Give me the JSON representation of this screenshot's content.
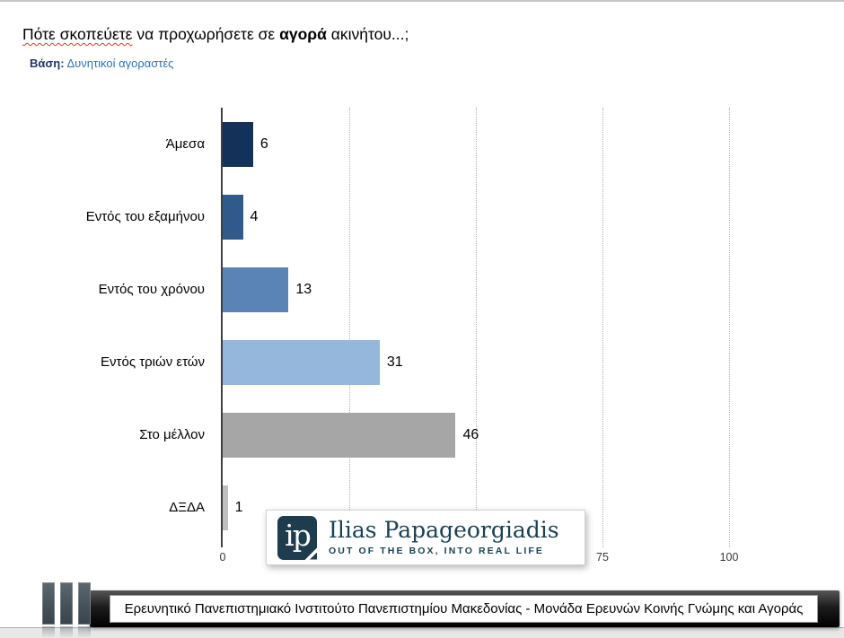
{
  "slide": {
    "title": {
      "part1": "Πότε σκοπεύετε",
      "part2": " να προχωρήσετε σε ",
      "bold": "αγορά",
      "part3": " ακινήτου...;"
    },
    "subtitle": {
      "label": "Βάση:",
      "value": "Δυνητικοί αγοραστές"
    }
  },
  "chart_data": {
    "type": "bar",
    "orientation": "horizontal",
    "title": "Πότε σκοπεύετε να προχωρήσετε σε αγορά ακινήτου...;",
    "categories": [
      "Άμεσα",
      "Εντός του εξαμήνου",
      "Εντός του χρόνου",
      "Εντός τριών ετών",
      "Στο μέλλον",
      "ΔΞΔΑ"
    ],
    "values": [
      6,
      4,
      13,
      31,
      46,
      1
    ],
    "bar_colors": [
      "#13325B",
      "#305A8C",
      "#5B84B6",
      "#95B7DB",
      "#A6A6A6",
      "#BFBFBF"
    ],
    "xlim": [
      0,
      100
    ],
    "x_gridlines": [
      25,
      50,
      75,
      100
    ],
    "x_tick_labels": [
      {
        "label": "0",
        "value": 0
      },
      {
        "label": "75",
        "value": 75
      },
      {
        "label": "100",
        "value": 100
      }
    ],
    "grid": "vertical-dotted",
    "legend": "none"
  },
  "logo": {
    "monogram": "ip",
    "name": "Ilias Papageorgiadis",
    "tagline": "OUT OF THE BOX, INTO REAL LIFE",
    "color": "#1E3C4D"
  },
  "footer": {
    "text": "Ερευνητικό Πανεπιστημιακό Ινστιτούτο Πανεπιστημίου Μακεδονίας - Μονάδα Ερευνών Κοινής Γνώμης και Αγοράς"
  },
  "colors": {
    "subtitle_label": "#1F3864",
    "subtitle_value": "#2E74B5",
    "spellcheck_underline": "#D83A2E",
    "gridline": "#B0B0B0",
    "axis": "#3F3F3F"
  }
}
